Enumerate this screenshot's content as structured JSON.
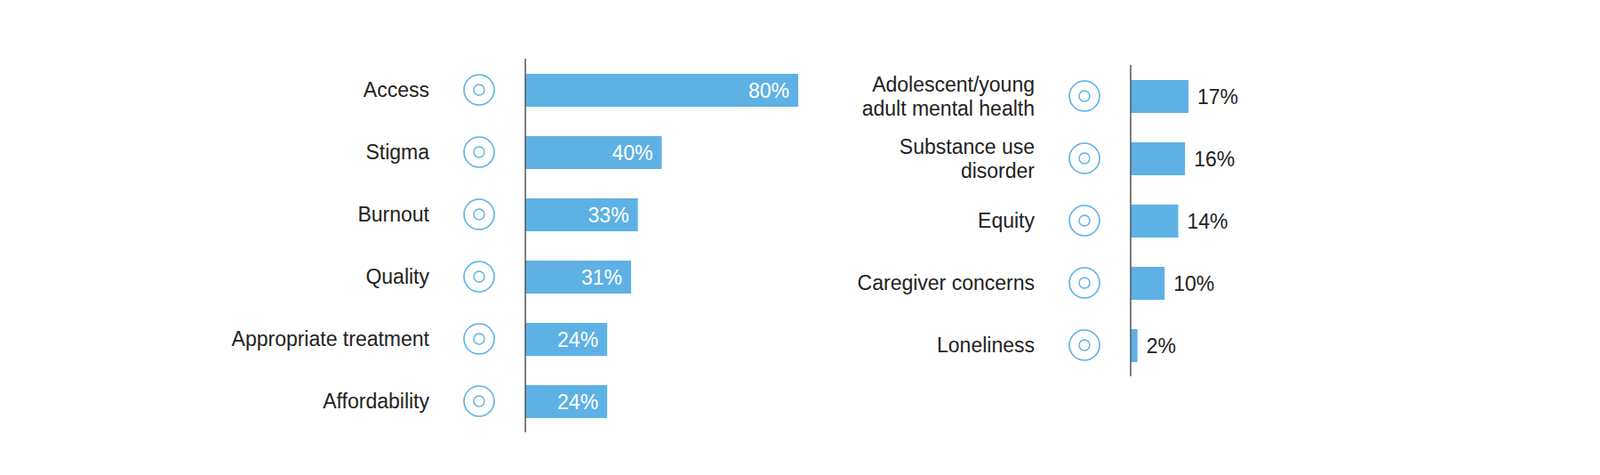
{
  "chart_data": [
    {
      "type": "bar",
      "orientation": "horizontal",
      "categories": [
        "Access",
        "Stigma",
        "Burnout",
        "Quality",
        "Appropriate treatment",
        "Affordability"
      ],
      "values": [
        80,
        40,
        33,
        31,
        24,
        24
      ],
      "value_labels": [
        "80%",
        "40%",
        "33%",
        "31%",
        "24%",
        "24%"
      ],
      "color": "#5eb1e4",
      "xlim": [
        0,
        80
      ],
      "data_labels": true,
      "tick_labels": "y",
      "grid": false
    },
    {
      "type": "bar",
      "orientation": "horizontal",
      "categories": [
        "Adolescent/young adult mental health",
        "Substance use disorder",
        "Equity",
        "Caregiver concerns",
        "Loneliness"
      ],
      "values": [
        17,
        16,
        14,
        10,
        2
      ],
      "value_labels": [
        "17%",
        "16%",
        "14%",
        "10%",
        "2%"
      ],
      "color": "#5eb1e4",
      "xlim": [
        0,
        17
      ],
      "data_labels": true,
      "tick_labels": "y",
      "grid": false
    }
  ]
}
